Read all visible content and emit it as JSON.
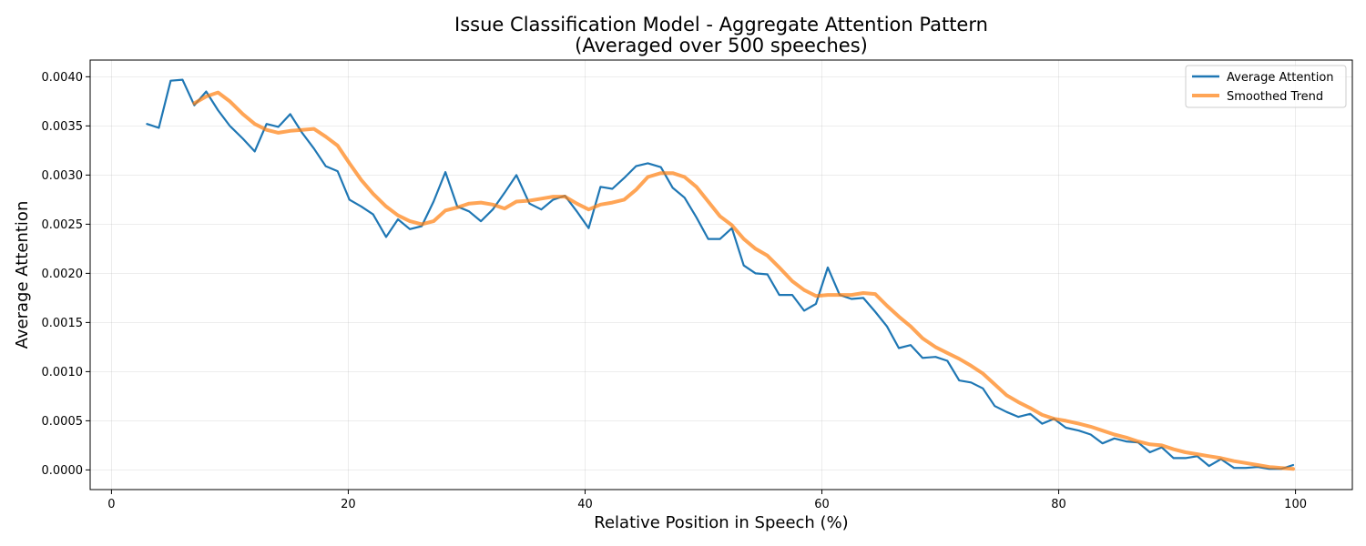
{
  "chart_data": {
    "type": "line",
    "title_line1": "Issue Classification Model - Aggregate Attention Pattern",
    "title_line2": "(Averaged over 500 speeches)",
    "xlabel": "Relative Position in Speech (%)",
    "ylabel": "Average Attention",
    "xlim": [
      -1.8,
      104.8
    ],
    "ylim": [
      -0.0002,
      0.00417
    ],
    "xticks": [
      0,
      20,
      40,
      60,
      80,
      100
    ],
    "xtick_labels": [
      "0",
      "20",
      "40",
      "60",
      "80",
      "100"
    ],
    "yticks": [
      0.0,
      0.0005,
      0.001,
      0.0015,
      0.002,
      0.0025,
      0.003,
      0.0035,
      0.004
    ],
    "ytick_labels": [
      "0.0000",
      "0.0005",
      "0.0010",
      "0.0015",
      "0.0020",
      "0.0025",
      "0.0030",
      "0.0035",
      "0.0040"
    ],
    "grid": true,
    "legend_position": "top-right",
    "series": [
      {
        "name": "Average Attention",
        "color": "#1f77b4",
        "x": [
          3.0,
          4.0,
          5.0,
          6.0,
          7.0,
          8.0,
          9.0,
          10.0,
          11.1,
          12.1,
          13.1,
          14.1,
          15.1,
          16.1,
          17.1,
          18.1,
          19.1,
          20.1,
          21.1,
          22.1,
          23.2,
          24.2,
          25.2,
          26.2,
          27.2,
          28.2,
          29.2,
          30.2,
          31.2,
          32.2,
          33.2,
          34.2,
          35.3,
          36.3,
          37.3,
          38.3,
          39.3,
          40.3,
          41.3,
          42.3,
          43.3,
          44.3,
          45.3,
          46.4,
          47.4,
          48.4,
          49.4,
          50.4,
          51.4,
          52.4,
          53.4,
          54.4,
          55.4,
          56.4,
          57.5,
          58.5,
          59.5,
          60.5,
          61.5,
          62.5,
          63.5,
          64.5,
          65.5,
          66.5,
          67.5,
          68.5,
          69.6,
          70.6,
          71.6,
          72.6,
          73.6,
          74.6,
          75.6,
          76.6,
          77.6,
          78.6,
          79.6,
          80.6,
          81.7,
          82.7,
          83.7,
          84.7,
          85.7,
          86.7,
          87.7,
          88.7,
          89.7,
          90.7,
          91.7,
          92.7,
          93.7,
          94.8,
          95.8,
          96.8,
          97.8,
          98.8,
          99.8
        ],
        "values": [
          0.00352,
          0.00348,
          0.00396,
          0.00397,
          0.00371,
          0.00385,
          0.00366,
          0.0035,
          0.00337,
          0.00324,
          0.00352,
          0.00349,
          0.00362,
          0.00343,
          0.00327,
          0.00309,
          0.00304,
          0.00275,
          0.00268,
          0.0026,
          0.00237,
          0.00255,
          0.00245,
          0.00248,
          0.00273,
          0.00303,
          0.00268,
          0.00263,
          0.00253,
          0.00265,
          0.00282,
          0.003,
          0.00271,
          0.00265,
          0.00275,
          0.00279,
          0.00263,
          0.00246,
          0.00288,
          0.00286,
          0.00297,
          0.00309,
          0.00312,
          0.00308,
          0.00287,
          0.00277,
          0.00257,
          0.00235,
          0.00235,
          0.00246,
          0.00208,
          0.002,
          0.00199,
          0.00178,
          0.00178,
          0.00162,
          0.00169,
          0.00206,
          0.00178,
          0.00174,
          0.00175,
          0.00161,
          0.00146,
          0.00124,
          0.00127,
          0.00114,
          0.00115,
          0.00111,
          0.00091,
          0.00089,
          0.00083,
          0.00065,
          0.00059,
          0.00054,
          0.00057,
          0.00047,
          0.00052,
          0.00043,
          0.0004,
          0.00036,
          0.00027,
          0.00032,
          0.00029,
          0.00028,
          0.00018,
          0.00023,
          0.00012,
          0.00012,
          0.00014,
          4e-05,
          0.00011,
          2e-05,
          2e-05,
          3e-05,
          1e-05,
          1e-05,
          5e-05
        ]
      },
      {
        "name": "Smoothed Trend",
        "color": "#ff7f0e",
        "x": [
          7.0,
          8.0,
          9.0,
          10.0,
          11.1,
          12.1,
          13.1,
          14.1,
          15.1,
          16.1,
          17.1,
          18.1,
          19.1,
          20.1,
          21.1,
          22.1,
          23.2,
          24.2,
          25.2,
          26.2,
          27.2,
          28.2,
          29.2,
          30.2,
          31.2,
          32.2,
          33.2,
          34.2,
          35.3,
          36.3,
          37.3,
          38.3,
          39.3,
          40.3,
          41.3,
          42.3,
          43.3,
          44.3,
          45.3,
          46.4,
          47.4,
          48.4,
          49.4,
          50.4,
          51.4,
          52.4,
          53.4,
          54.4,
          55.4,
          56.4,
          57.5,
          58.5,
          59.5,
          60.5,
          61.5,
          62.5,
          63.5,
          64.5,
          65.5,
          66.5,
          67.5,
          68.5,
          69.6,
          70.6,
          71.6,
          72.6,
          73.6,
          74.6,
          75.6,
          76.6,
          77.6,
          78.6,
          79.6,
          80.6,
          81.7,
          82.7,
          83.7,
          84.7,
          85.7,
          86.7,
          87.7,
          88.7,
          89.7,
          90.7,
          91.7,
          92.7,
          93.7,
          94.8,
          95.8,
          96.8,
          97.8,
          98.8,
          99.8
        ],
        "values": [
          0.00373,
          0.0038,
          0.00384,
          0.00375,
          0.00362,
          0.00352,
          0.00346,
          0.00343,
          0.00345,
          0.00346,
          0.00347,
          0.00339,
          0.0033,
          0.00312,
          0.00295,
          0.00281,
          0.00268,
          0.00259,
          0.00253,
          0.0025,
          0.00253,
          0.00264,
          0.00267,
          0.00271,
          0.00272,
          0.0027,
          0.00266,
          0.00273,
          0.00274,
          0.00276,
          0.00278,
          0.00278,
          0.00271,
          0.00265,
          0.0027,
          0.00272,
          0.00275,
          0.00285,
          0.00298,
          0.00302,
          0.00302,
          0.00298,
          0.00288,
          0.00273,
          0.00258,
          0.00249,
          0.00235,
          0.00225,
          0.00218,
          0.00206,
          0.00192,
          0.00183,
          0.00177,
          0.00178,
          0.00178,
          0.00178,
          0.0018,
          0.00179,
          0.00167,
          0.00156,
          0.00146,
          0.00134,
          0.00125,
          0.00119,
          0.00113,
          0.00106,
          0.00098,
          0.00087,
          0.00076,
          0.00069,
          0.00063,
          0.00056,
          0.00052,
          0.0005,
          0.00047,
          0.00044,
          0.0004,
          0.00036,
          0.00033,
          0.00029,
          0.00026,
          0.00025,
          0.00021,
          0.00018,
          0.00016,
          0.00014,
          0.00012,
          9e-05,
          7e-05,
          5e-05,
          3e-05,
          2e-05,
          1e-05
        ]
      }
    ]
  }
}
